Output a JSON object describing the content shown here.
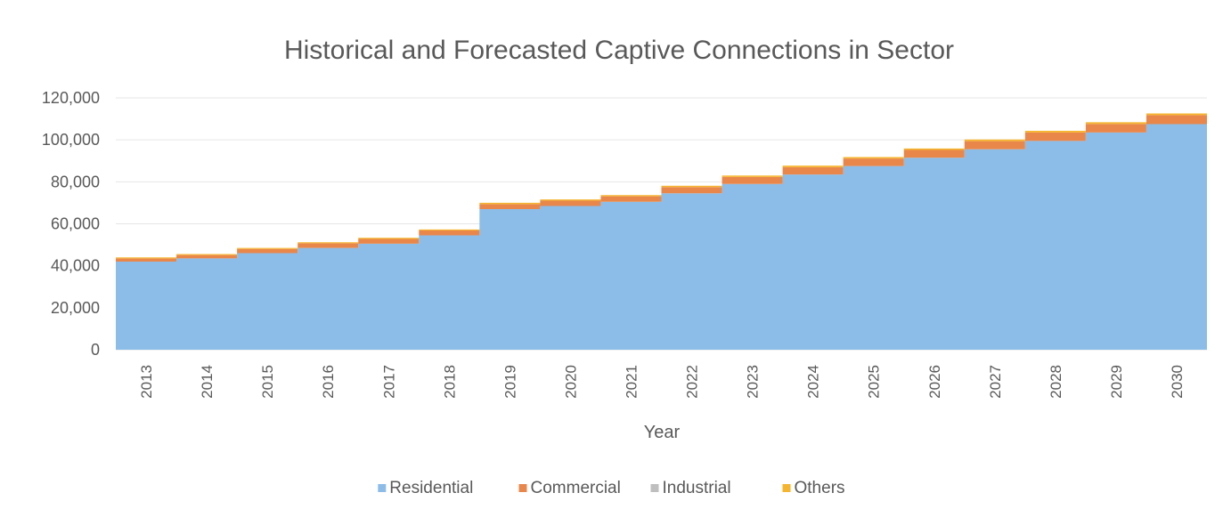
{
  "chart_data": {
    "type": "area",
    "title": "Historical and Forecasted Captive Connections in Sector",
    "xlabel": "Year",
    "ylabel": "",
    "ylim": [
      0,
      120000
    ],
    "y_ticks": [
      "0",
      "20,000",
      "40,000",
      "60,000",
      "80,000",
      "100,000",
      "120,000"
    ],
    "y_tick_values": [
      0,
      20000,
      40000,
      60000,
      80000,
      100000,
      120000
    ],
    "grid": true,
    "stacked": true,
    "legend_position": "bottom",
    "categories": [
      "2013",
      "2014",
      "2015",
      "2016",
      "2017",
      "2018",
      "2019",
      "2020",
      "2021",
      "2022",
      "2023",
      "2024",
      "2025",
      "2026",
      "2027",
      "2028",
      "2029",
      "2030"
    ],
    "series": [
      {
        "name": "Residential",
        "color": "#8bbde8",
        "values": [
          42000,
          43500,
          46000,
          48500,
          50500,
          54500,
          67000,
          68500,
          70500,
          74500,
          79000,
          83500,
          87500,
          91500,
          95500,
          99500,
          103500,
          107500
        ]
      },
      {
        "name": "Commercial",
        "color": "#e9874b",
        "values": [
          1500,
          1600,
          2000,
          2200,
          2300,
          2300,
          2400,
          2500,
          2600,
          3000,
          3300,
          3500,
          3600,
          3700,
          3900,
          4000,
          4100,
          4300
        ]
      },
      {
        "name": "Industrial",
        "color": "#bfbfbf",
        "values": [
          0,
          0,
          0,
          0,
          0,
          0,
          0,
          0,
          0,
          0,
          0,
          0,
          0,
          0,
          0,
          0,
          0,
          0
        ]
      },
      {
        "name": "Others",
        "color": "#f5b52e",
        "values": [
          500,
          500,
          500,
          500,
          500,
          500,
          600,
          600,
          600,
          600,
          700,
          700,
          700,
          700,
          800,
          800,
          800,
          800
        ]
      }
    ]
  }
}
